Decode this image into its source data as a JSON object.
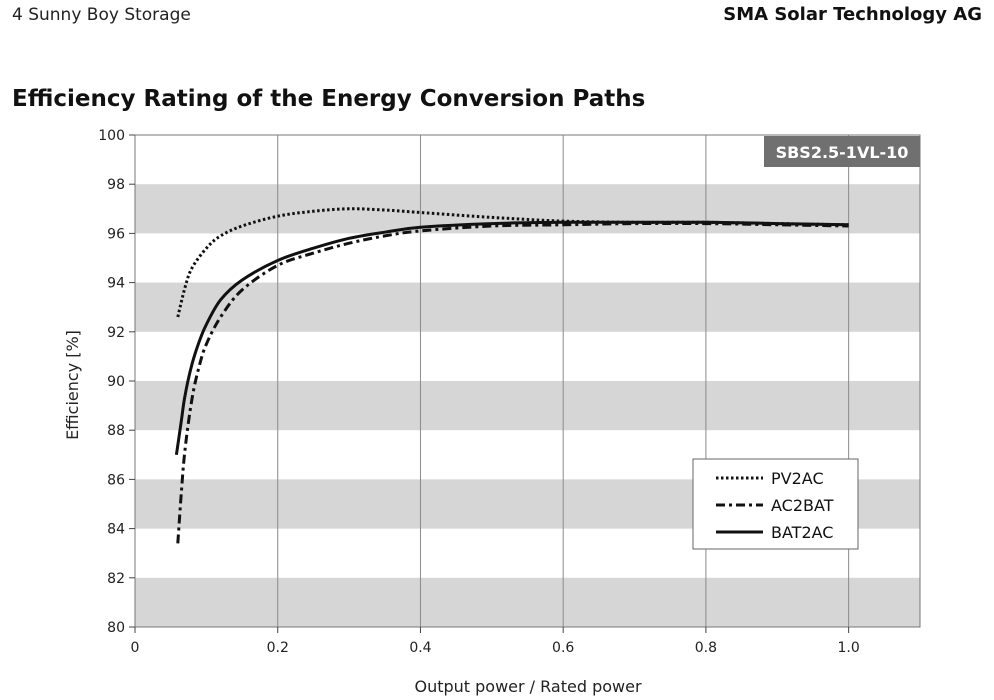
{
  "header": {
    "left": "4 Sunny Boy Storage",
    "right": "SMA Solar Technology AG"
  },
  "chart_data": {
    "type": "line",
    "title": "Efficiency Rating of the Energy Conversion Paths",
    "badge": "SBS2.5-1VL-10",
    "xlabel": "Output power / Rated power",
    "ylabel": "Efficiency [%]",
    "xlim": [
      0,
      1.1
    ],
    "ylim": [
      80,
      100
    ],
    "xticks": [
      0,
      0.2,
      0.4,
      0.6,
      0.8,
      1.0
    ],
    "xtick_labels": [
      "0",
      "0.2",
      "0.4",
      "0.6",
      "0.8",
      "1.0"
    ],
    "yticks": [
      80,
      82,
      84,
      86,
      88,
      90,
      92,
      94,
      96,
      98,
      100
    ],
    "ytick_labels": [
      "80",
      "82",
      "84",
      "86",
      "88",
      "90",
      "92",
      "94",
      "96",
      "98",
      "100"
    ],
    "grid": "vertical lines, alternating gray horizontal bands",
    "legend_position": "bottom-right",
    "series": [
      {
        "name": "PV2AC",
        "style": "dotted",
        "x": [
          0.06,
          0.07,
          0.08,
          0.1,
          0.12,
          0.15,
          0.2,
          0.25,
          0.3,
          0.35,
          0.4,
          0.5,
          0.6,
          0.7,
          0.8,
          0.9,
          1.0
        ],
        "y": [
          92.6,
          93.8,
          94.6,
          95.4,
          95.9,
          96.3,
          96.7,
          96.9,
          97.0,
          96.95,
          96.85,
          96.65,
          96.5,
          96.45,
          96.45,
          96.4,
          96.35
        ]
      },
      {
        "name": "AC2BAT",
        "style": "dash-dot",
        "x": [
          0.06,
          0.065,
          0.07,
          0.08,
          0.09,
          0.1,
          0.12,
          0.15,
          0.2,
          0.25,
          0.3,
          0.35,
          0.4,
          0.5,
          0.6,
          0.7,
          0.8,
          0.9,
          1.0
        ],
        "y": [
          83.4,
          85.5,
          87.2,
          89.3,
          90.6,
          91.5,
          92.6,
          93.7,
          94.7,
          95.2,
          95.6,
          95.9,
          96.1,
          96.3,
          96.35,
          96.4,
          96.4,
          96.35,
          96.3
        ]
      },
      {
        "name": "BAT2AC",
        "style": "solid",
        "x": [
          0.058,
          0.065,
          0.07,
          0.08,
          0.09,
          0.1,
          0.12,
          0.15,
          0.2,
          0.25,
          0.3,
          0.35,
          0.4,
          0.5,
          0.6,
          0.7,
          0.8,
          0.9,
          1.0
        ],
        "y": [
          87.0,
          88.4,
          89.4,
          90.7,
          91.6,
          92.3,
          93.3,
          94.1,
          94.9,
          95.4,
          95.8,
          96.05,
          96.25,
          96.4,
          96.45,
          96.45,
          96.45,
          96.4,
          96.35
        ]
      }
    ]
  }
}
